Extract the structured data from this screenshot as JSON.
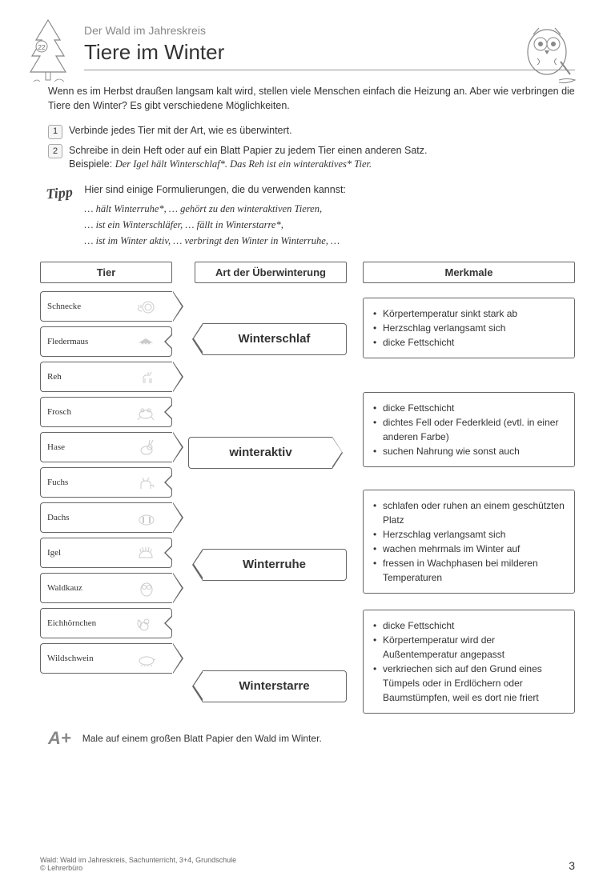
{
  "header": {
    "series_title": "Der Wald im Jahreskreis",
    "page_title": "Tiere im Winter",
    "page_badge_number": "22"
  },
  "intro": "Wenn es im Herbst draußen langsam kalt wird, stellen viele Menschen einfach die Heizung an. Aber wie verbringen die Tiere den Winter? Es gibt verschiedene Möglichkeiten.",
  "tasks": [
    {
      "num": "1",
      "text": "Verbinde jedes Tier mit der Art, wie es überwintert."
    },
    {
      "num": "2",
      "text": "Schreibe in dein Heft oder auf ein Blatt Papier zu jedem Tier einen anderen Satz."
    }
  ],
  "task2_example_label": "Beispiele:",
  "task2_example": "Der Igel hält Winterschlaf*. Das Reh ist ein winteraktives* Tier.",
  "tipp": {
    "label": "Tipp",
    "intro": "Hier sind einige Formulierungen, die du verwenden kannst:",
    "lines": [
      "… hält Winterruhe*, … gehört zu den winteraktiven Tieren,",
      "… ist ein Winterschläfer, … fällt in Winterstarre*,",
      "… ist im Winter aktiv, … verbringt den Winter in Winterruhe, …"
    ]
  },
  "column_headers": {
    "c1": "Tier",
    "c2": "Art der Überwinterung",
    "c3": "Merkmale"
  },
  "animals": [
    {
      "name": "Schnecke",
      "icon": "snail"
    },
    {
      "name": "Fledermaus",
      "icon": "bat"
    },
    {
      "name": "Reh",
      "icon": "deer"
    },
    {
      "name": "Frosch",
      "icon": "frog"
    },
    {
      "name": "Hase",
      "icon": "hare"
    },
    {
      "name": "Fuchs",
      "icon": "fox"
    },
    {
      "name": "Dachs",
      "icon": "badger"
    },
    {
      "name": "Igel",
      "icon": "hedgehog"
    },
    {
      "name": "Waldkauz",
      "icon": "owl"
    },
    {
      "name": "Eichhörnchen",
      "icon": "squirrel"
    },
    {
      "name": "Wildschwein",
      "icon": "boar"
    }
  ],
  "types": [
    {
      "label": "Winterschlaf",
      "spacer_before": 40,
      "spacer_after": 62,
      "reverse": false
    },
    {
      "label": "winteraktiv",
      "spacer_before": 40,
      "spacer_after": 58,
      "reverse": true
    },
    {
      "label": "Winterruhe",
      "spacer_before": 42,
      "spacer_after": 66,
      "reverse": false
    },
    {
      "label": "Winterstarre",
      "spacer_before": 46,
      "spacer_after": 0,
      "reverse": false
    }
  ],
  "features": [
    {
      "spacer_before": 8,
      "items": [
        "Körpertemperatur sinkt stark ab",
        "Herzschlag verlangsamt sich",
        "dicke Fettschicht"
      ]
    },
    {
      "spacer_before": 42,
      "items": [
        "dicke Fettschicht",
        "dichtes Fell oder Federkleid (evtl. in einer anderen Farbe)",
        "suchen Nahrung wie sonst auch"
      ]
    },
    {
      "spacer_before": 28,
      "items": [
        "schlafen oder ruhen an einem geschützten Platz",
        "Herzschlag verlangsamt sich",
        "wachen mehrmals im Winter auf",
        "fressen in Wachphasen bei milderen Temperaturen"
      ]
    },
    {
      "spacer_before": 20,
      "items": [
        "dicke Fettschicht",
        "Körpertemperatur wird der Außentemperatur angepasst",
        "verkriechen sich auf den Grund eines Tümpels oder in Erdlöchern oder Baumstümpfen, weil es dort nie friert"
      ]
    }
  ],
  "bonus": {
    "badge": "A+",
    "text": "Male auf einem großen Blatt Papier den Wald im Winter."
  },
  "footer": {
    "line1": "Wald: Wald im Jahreskreis, Sachunterricht, 3+4, Grundschule",
    "line2": "© Lehrerbüro",
    "page_number": "3"
  },
  "colors": {
    "border": "#666666",
    "text": "#333333",
    "muted": "#888888",
    "background": "#ffffff"
  }
}
